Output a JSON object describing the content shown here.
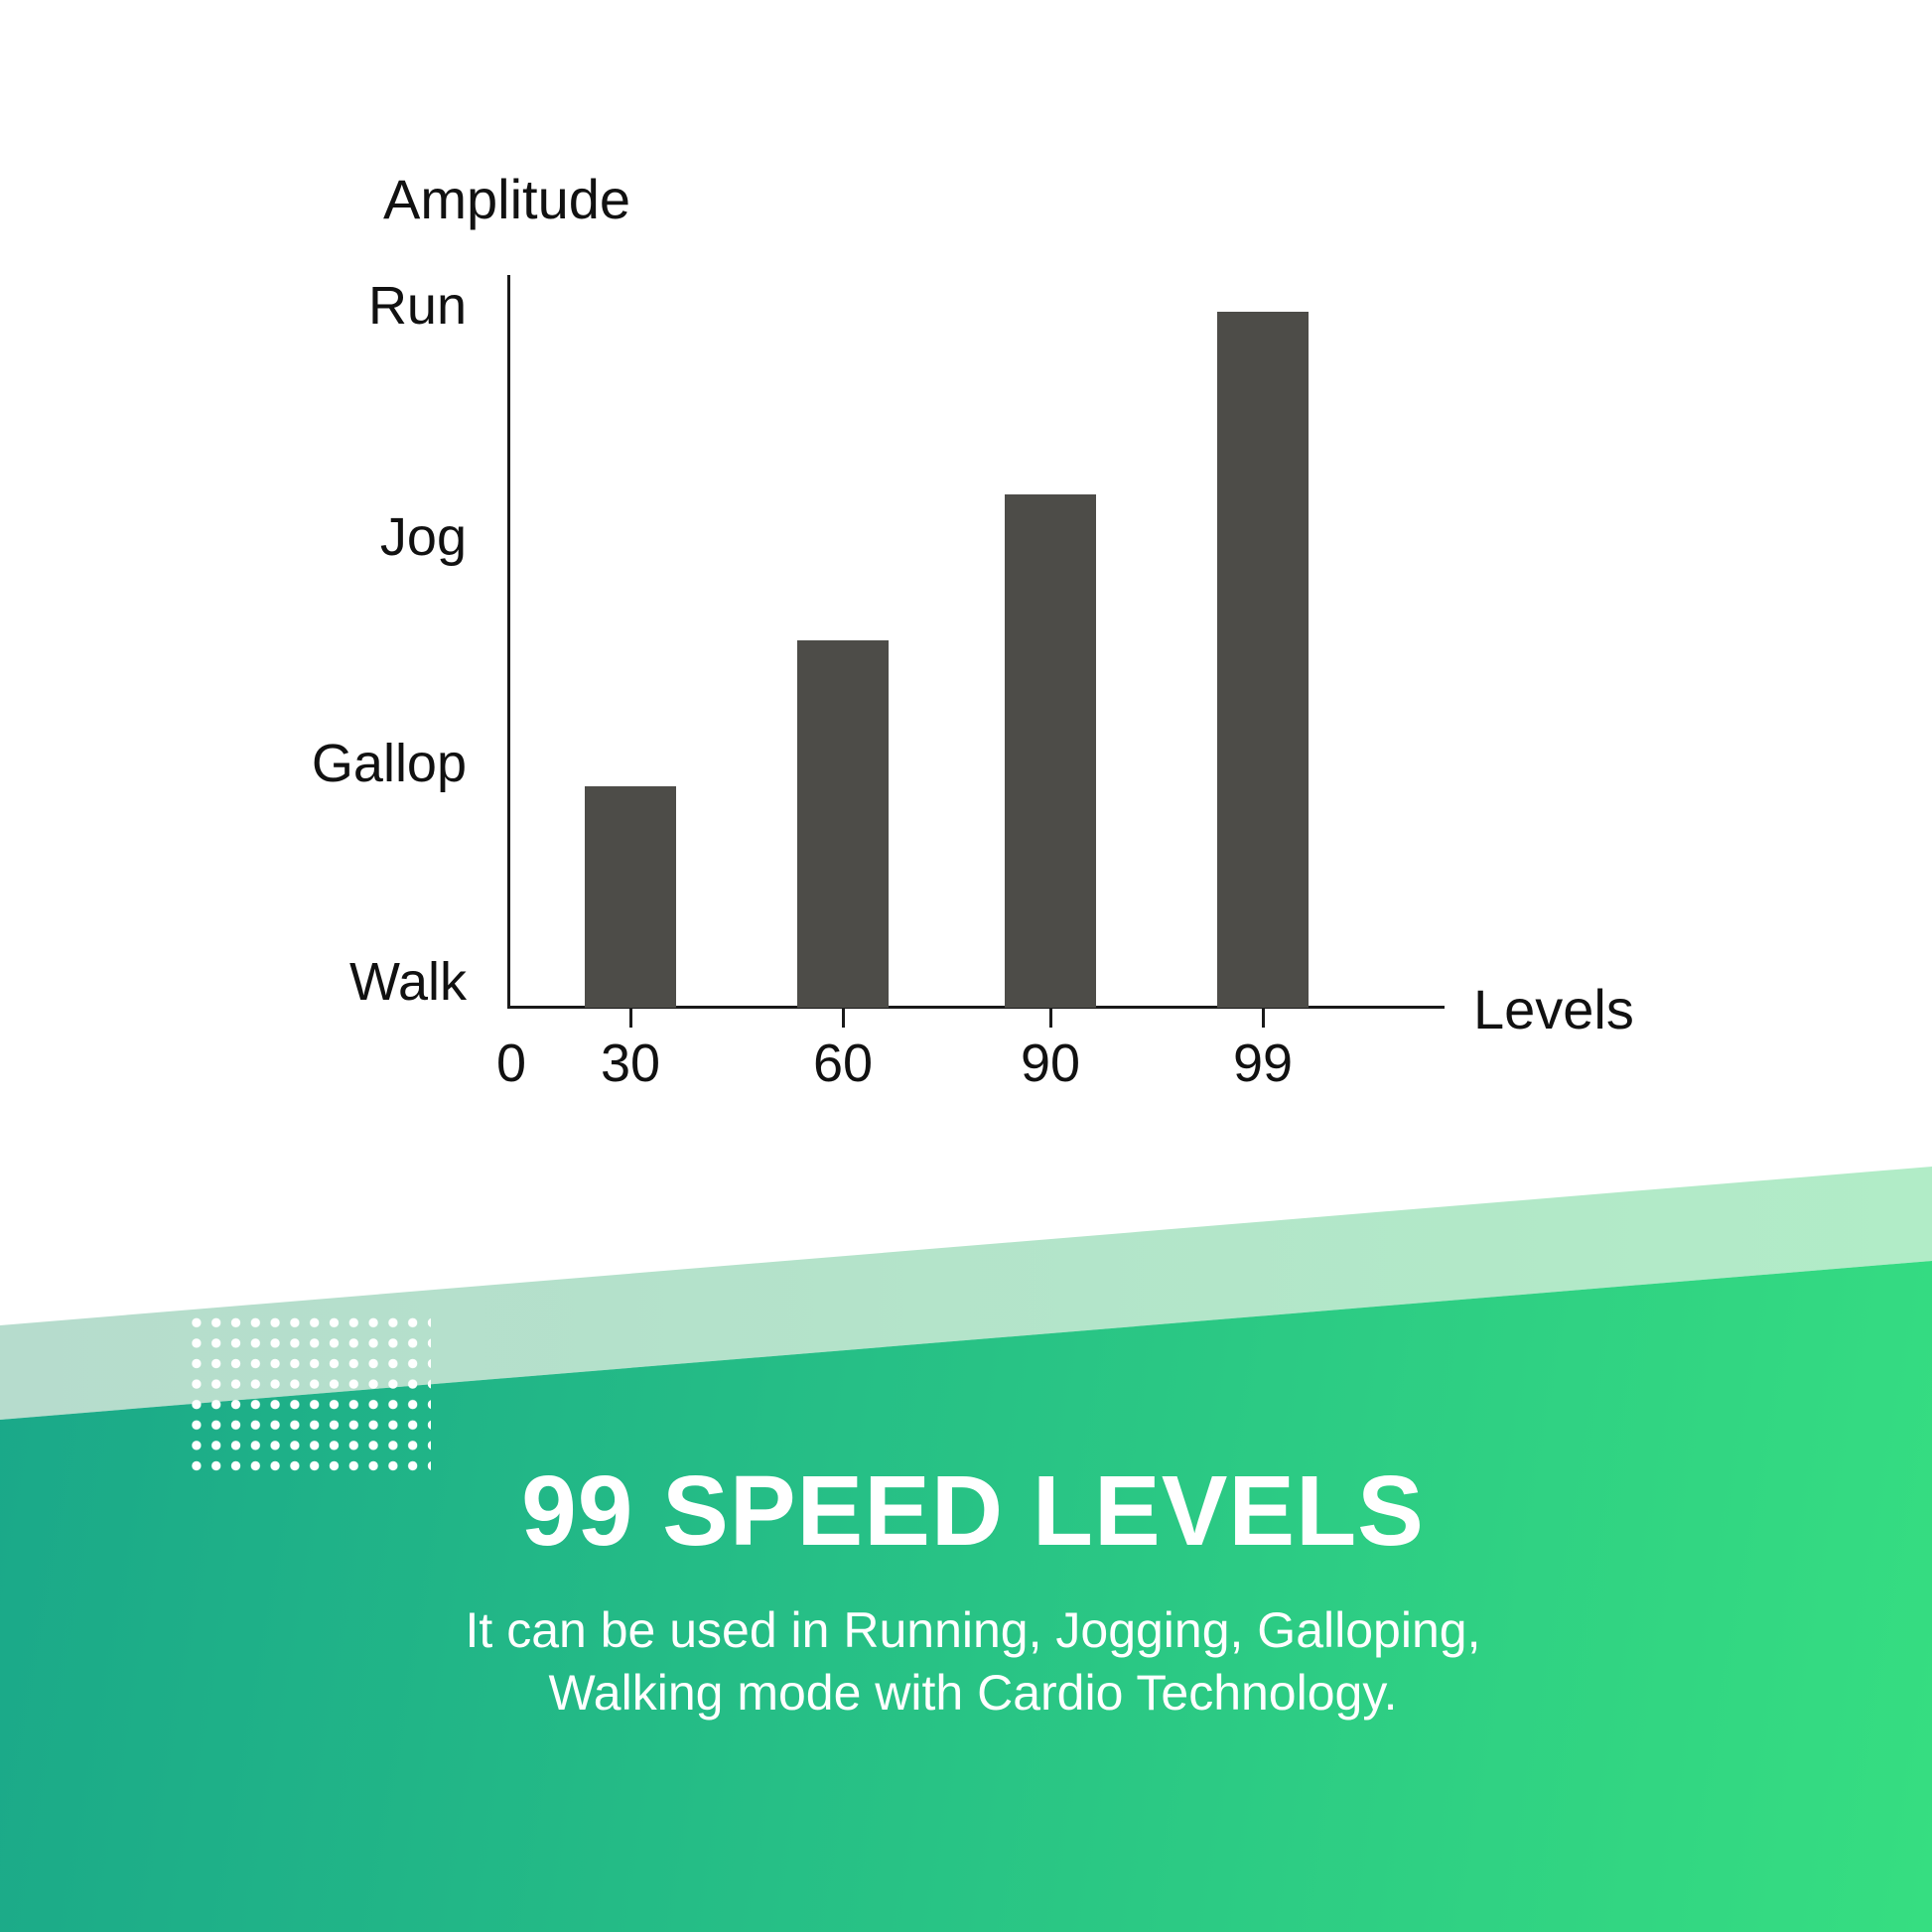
{
  "page": {
    "background": "#ffffff"
  },
  "chart_data": {
    "type": "bar",
    "title": "Amplitude",
    "xlabel": "Levels",
    "x_ticks": [
      "0",
      "30",
      "60",
      "90",
      "99"
    ],
    "categories": [
      "30",
      "60",
      "90",
      "99"
    ],
    "values_fraction_of_axis": [
      0.3,
      0.5,
      0.7,
      0.95
    ],
    "values_amplitude_units": [
      0.9,
      1.5,
      2.15,
      3.0
    ],
    "y_tick_labels_top_to_bottom": [
      "Run",
      "Jog",
      "Gallop",
      "Walk"
    ],
    "bar_color": "#4d4c48",
    "axis_color": "#1a1a1a",
    "text_color": "#111111",
    "grid": "off",
    "legend": "none"
  },
  "promo": {
    "title": "99 SPEED LEVELS",
    "subtitle_line1": "It can be used in Running, Jogging, Galloping,",
    "subtitle_line2": "Walking mode with Cardio Technology.",
    "text_color": "#ffffff",
    "gradient_start": "#17a28a",
    "gradient_end": "#36de81",
    "band_start": "#b6dccd",
    "band_end": "#b1ecc7",
    "dot_color": "#ffffff"
  }
}
